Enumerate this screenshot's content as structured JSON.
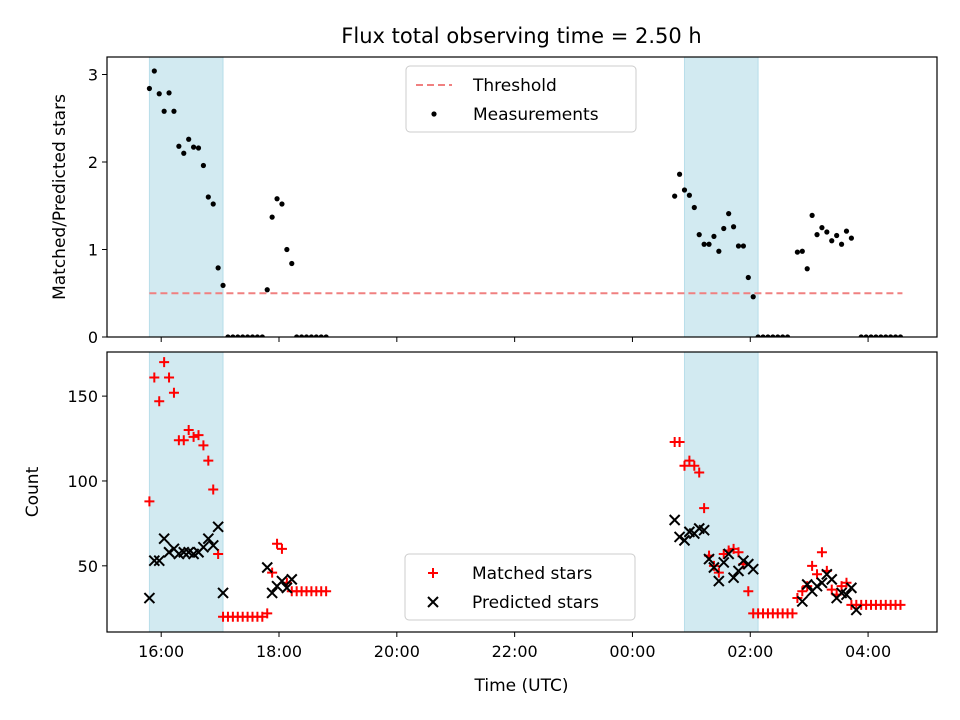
{
  "chart_data": [
    {
      "type": "scatter",
      "title": "Flux total observing time = 2.50 h",
      "xlabel": "",
      "ylabel": "Matched/Predicted stars",
      "ylim": [
        0,
        3.2
      ],
      "yticks": [
        "0",
        "1",
        "2",
        "3"
      ],
      "xlim_hours": [
        15.08,
        29.17
      ],
      "xtick_labels": [
        "16:00",
        "18:00",
        "20:00",
        "22:00",
        "00:00",
        "02:00",
        "04:00"
      ],
      "shaded_spans": [
        {
          "start": "15:48",
          "end": "17:03"
        },
        {
          "start": "00:53",
          "end": "02:08"
        }
      ],
      "shade_color": "#add8e6",
      "legend_position": "upper center",
      "series": [
        {
          "name": "Threshold",
          "style": "dashed-line",
          "color": "#f08080",
          "x": [
            "15:48",
            "04:35"
          ],
          "y": [
            0.5,
            0.5
          ]
        },
        {
          "name": "Measurements",
          "style": "dot",
          "color": "#000000",
          "points": [
            [
              "15:48",
              2.84
            ],
            [
              "15:53",
              3.04
            ],
            [
              "15:58",
              2.78
            ],
            [
              "16:03",
              2.58
            ],
            [
              "16:08",
              2.79
            ],
            [
              "16:13",
              2.58
            ],
            [
              "16:18",
              2.18
            ],
            [
              "16:23",
              2.1
            ],
            [
              "16:28",
              2.26
            ],
            [
              "16:33",
              2.17
            ],
            [
              "16:38",
              2.16
            ],
            [
              "16:43",
              1.96
            ],
            [
              "16:48",
              1.6
            ],
            [
              "16:53",
              1.52
            ],
            [
              "16:58",
              0.79
            ],
            [
              "17:03",
              0.59
            ],
            [
              "17:08",
              0
            ],
            [
              "17:13",
              0
            ],
            [
              "17:18",
              0
            ],
            [
              "17:23",
              0
            ],
            [
              "17:28",
              0
            ],
            [
              "17:33",
              0
            ],
            [
              "17:38",
              0
            ],
            [
              "17:43",
              0
            ],
            [
              "17:48",
              0.54
            ],
            [
              "17:53",
              1.37
            ],
            [
              "17:58",
              1.58
            ],
            [
              "18:03",
              1.52
            ],
            [
              "18:08",
              1.0
            ],
            [
              "18:13",
              0.84
            ],
            [
              "18:18",
              0
            ],
            [
              "18:23",
              0
            ],
            [
              "18:28",
              0
            ],
            [
              "18:33",
              0
            ],
            [
              "18:38",
              0
            ],
            [
              "18:43",
              0
            ],
            [
              "18:48",
              0
            ],
            [
              "00:43",
              1.61
            ],
            [
              "00:48",
              1.86
            ],
            [
              "00:53",
              1.68
            ],
            [
              "00:58",
              1.62
            ],
            [
              "01:03",
              1.48
            ],
            [
              "01:08",
              1.17
            ],
            [
              "01:13",
              1.06
            ],
            [
              "01:18",
              1.06
            ],
            [
              "01:23",
              1.15
            ],
            [
              "01:28",
              0.98
            ],
            [
              "01:33",
              1.24
            ],
            [
              "01:38",
              1.41
            ],
            [
              "01:43",
              1.26
            ],
            [
              "01:48",
              1.04
            ],
            [
              "01:53",
              1.04
            ],
            [
              "01:58",
              0.68
            ],
            [
              "02:03",
              0.46
            ],
            [
              "02:08",
              0
            ],
            [
              "02:13",
              0
            ],
            [
              "02:18",
              0
            ],
            [
              "02:23",
              0
            ],
            [
              "02:28",
              0
            ],
            [
              "02:33",
              0
            ],
            [
              "02:38",
              0
            ],
            [
              "02:48",
              0.97
            ],
            [
              "02:53",
              0.98
            ],
            [
              "02:58",
              0.78
            ],
            [
              "03:03",
              1.39
            ],
            [
              "03:08",
              1.17
            ],
            [
              "03:13",
              1.25
            ],
            [
              "03:18",
              1.2
            ],
            [
              "03:23",
              1.1
            ],
            [
              "03:28",
              1.16
            ],
            [
              "03:33",
              1.06
            ],
            [
              "03:38",
              1.21
            ],
            [
              "03:43",
              1.13
            ],
            [
              "03:53",
              0
            ],
            [
              "03:58",
              0
            ],
            [
              "04:03",
              0
            ],
            [
              "04:08",
              0
            ],
            [
              "04:13",
              0
            ],
            [
              "04:18",
              0
            ],
            [
              "04:23",
              0
            ],
            [
              "04:28",
              0
            ],
            [
              "04:33",
              0
            ]
          ]
        }
      ]
    },
    {
      "type": "scatter",
      "title": "",
      "xlabel": "Time (UTC)",
      "ylabel": "Count",
      "ylim": [
        11,
        176
      ],
      "yticks": [
        "50",
        "100",
        "150"
      ],
      "xlim_hours": [
        15.08,
        29.17
      ],
      "xtick_labels": [
        "16:00",
        "18:00",
        "20:00",
        "22:00",
        "00:00",
        "02:00",
        "04:00"
      ],
      "shaded_spans": [
        {
          "start": "15:48",
          "end": "17:03"
        },
        {
          "start": "00:53",
          "end": "02:08"
        }
      ],
      "shade_color": "#add8e6",
      "legend_position": "lower center",
      "series": [
        {
          "name": "Matched stars",
          "marker": "plus",
          "color": "#ff0000",
          "points": [
            [
              "15:48",
              88
            ],
            [
              "15:53",
              161
            ],
            [
              "15:58",
              147
            ],
            [
              "16:03",
              170
            ],
            [
              "16:08",
              161
            ],
            [
              "16:13",
              152
            ],
            [
              "16:18",
              124
            ],
            [
              "16:23",
              124
            ],
            [
              "16:28",
              130
            ],
            [
              "16:33",
              126
            ],
            [
              "16:38",
              127
            ],
            [
              "16:43",
              121
            ],
            [
              "16:48",
              112
            ],
            [
              "16:53",
              95
            ],
            [
              "16:58",
              57
            ],
            [
              "17:03",
              20
            ],
            [
              "17:08",
              20
            ],
            [
              "17:13",
              20
            ],
            [
              "17:18",
              20
            ],
            [
              "17:23",
              20
            ],
            [
              "17:28",
              20
            ],
            [
              "17:33",
              20
            ],
            [
              "17:38",
              20
            ],
            [
              "17:43",
              20
            ],
            [
              "17:48",
              22
            ],
            [
              "17:53",
              46
            ],
            [
              "17:58",
              63
            ],
            [
              "18:03",
              60
            ],
            [
              "18:08",
              40
            ],
            [
              "18:13",
              35
            ],
            [
              "18:18",
              35
            ],
            [
              "18:23",
              35
            ],
            [
              "18:28",
              35
            ],
            [
              "18:33",
              35
            ],
            [
              "18:38",
              35
            ],
            [
              "18:43",
              35
            ],
            [
              "18:48",
              35
            ],
            [
              "00:43",
              123
            ],
            [
              "00:48",
              123
            ],
            [
              "00:53",
              109
            ],
            [
              "00:58",
              112
            ],
            [
              "01:03",
              109
            ],
            [
              "01:08",
              105
            ],
            [
              "01:13",
              84
            ],
            [
              "01:18",
              56
            ],
            [
              "01:23",
              50
            ],
            [
              "01:28",
              46
            ],
            [
              "01:33",
              57
            ],
            [
              "01:38",
              59
            ],
            [
              "01:43",
              60
            ],
            [
              "01:48",
              58
            ],
            [
              "01:53",
              51
            ],
            [
              "01:58",
              35
            ],
            [
              "02:03",
              22
            ],
            [
              "02:08",
              22
            ],
            [
              "02:13",
              22
            ],
            [
              "02:18",
              22
            ],
            [
              "02:23",
              22
            ],
            [
              "02:28",
              22
            ],
            [
              "02:33",
              22
            ],
            [
              "02:38",
              22
            ],
            [
              "02:43",
              22
            ],
            [
              "02:48",
              31
            ],
            [
              "02:53",
              35
            ],
            [
              "02:58",
              38
            ],
            [
              "03:03",
              50
            ],
            [
              "03:08",
              45
            ],
            [
              "03:13",
              58
            ],
            [
              "03:18",
              47
            ],
            [
              "03:23",
              36
            ],
            [
              "03:28",
              33
            ],
            [
              "03:33",
              38
            ],
            [
              "03:38",
              40
            ],
            [
              "03:43",
              27
            ],
            [
              "03:48",
              27
            ],
            [
              "03:53",
              27
            ],
            [
              "03:58",
              27
            ],
            [
              "04:03",
              27
            ],
            [
              "04:08",
              27
            ],
            [
              "04:13",
              27
            ],
            [
              "04:18",
              27
            ],
            [
              "04:23",
              27
            ],
            [
              "04:28",
              27
            ],
            [
              "04:33",
              27
            ]
          ]
        },
        {
          "name": "Predicted stars",
          "marker": "x",
          "color": "#000000",
          "points": [
            [
              "15:48",
              31
            ],
            [
              "15:53",
              53
            ],
            [
              "15:58",
              53
            ],
            [
              "16:03",
              66
            ],
            [
              "16:08",
              58
            ],
            [
              "16:13",
              60
            ],
            [
              "16:18",
              57
            ],
            [
              "16:23",
              58
            ],
            [
              "16:28",
              58
            ],
            [
              "16:33",
              57
            ],
            [
              "16:38",
              58
            ],
            [
              "16:43",
              61
            ],
            [
              "16:48",
              66
            ],
            [
              "16:53",
              62
            ],
            [
              "16:58",
              73
            ],
            [
              "17:03",
              34
            ],
            [
              "17:48",
              49
            ],
            [
              "17:53",
              34
            ],
            [
              "17:58",
              38
            ],
            [
              "18:03",
              41
            ],
            [
              "18:08",
              37
            ],
            [
              "18:13",
              42
            ],
            [
              "00:43",
              77
            ],
            [
              "00:48",
              67
            ],
            [
              "00:53",
              65
            ],
            [
              "00:58",
              70
            ],
            [
              "01:03",
              69
            ],
            [
              "01:08",
              72
            ],
            [
              "01:13",
              71
            ],
            [
              "01:18",
              54
            ],
            [
              "01:23",
              49
            ],
            [
              "01:28",
              41
            ],
            [
              "01:33",
              52
            ],
            [
              "01:38",
              57
            ],
            [
              "01:43",
              43
            ],
            [
              "01:48",
              47
            ],
            [
              "01:53",
              53
            ],
            [
              "01:58",
              51
            ],
            [
              "02:03",
              48
            ],
            [
              "02:53",
              29
            ],
            [
              "02:58",
              39
            ],
            [
              "03:03",
              35
            ],
            [
              "03:08",
              38
            ],
            [
              "03:13",
              40
            ],
            [
              "03:18",
              45
            ],
            [
              "03:23",
              42
            ],
            [
              "03:28",
              31
            ],
            [
              "03:33",
              34
            ],
            [
              "03:38",
              33
            ],
            [
              "03:43",
              37
            ],
            [
              "03:48",
              24
            ]
          ]
        }
      ]
    }
  ]
}
